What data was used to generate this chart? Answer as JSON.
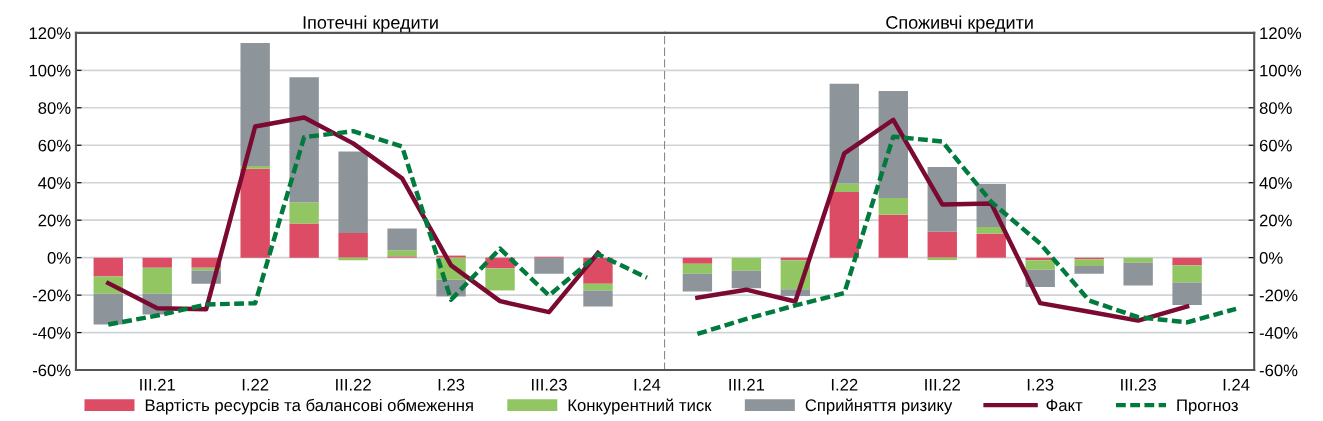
{
  "chart_data": [
    {
      "type": "bar",
      "title": "Іпотечні кредити",
      "stacked": true,
      "grid": "y",
      "legend": "bottom",
      "categories": [
        null,
        "III.21",
        null,
        "I.22",
        null,
        "III.22",
        null,
        "I.23",
        null,
        "III.23",
        null,
        "I.24"
      ],
      "ylim": [
        -60,
        120
      ],
      "yticks": [
        {
          "value": -60,
          "label": "-60%"
        },
        {
          "value": -40,
          "label": "-40%"
        },
        {
          "value": -20,
          "label": "-20%"
        },
        {
          "value": 0,
          "label": "0%"
        },
        {
          "value": 20,
          "label": "20%"
        },
        {
          "value": 40,
          "label": "40%"
        },
        {
          "value": 60,
          "label": "60%"
        },
        {
          "value": 80,
          "label": "80%"
        },
        {
          "value": 100,
          "label": "100%"
        },
        {
          "value": 120,
          "label": "120%"
        }
      ],
      "series": [
        {
          "name": "Вартість ресурсів та балансові обмеження",
          "color": "#dc4c64",
          "values": [
            -10,
            -5.4,
            -5.4,
            47.5,
            18.2,
            13.2,
            0.7,
            1.1,
            -5.7,
            0.5,
            -13.9,
            null
          ]
        },
        {
          "name": "Конкурентний тиск",
          "color": "#92c663",
          "values": [
            -9.3,
            -13.9,
            -1.4,
            1.4,
            11.3,
            -1.4,
            3.2,
            -11.8,
            -11.8,
            null,
            -3.6,
            null
          ]
        },
        {
          "name": "Сприйняття ризику",
          "color": "#8e959a",
          "values": [
            -16.4,
            -11,
            -7.1,
            65.7,
            66.8,
            43.4,
            11.6,
            -8.9,
            null,
            -8.6,
            -8.6,
            null
          ]
        },
        {
          "name": "Факт",
          "type": "line",
          "line_style": "solid",
          "color": "#7a0a32",
          "values": [
            -13.6,
            -27,
            -27.5,
            70,
            74.8,
            61,
            42.3,
            -4.1,
            -23.2,
            -29.1,
            2.5,
            null
          ]
        },
        {
          "name": "Прогноз",
          "type": "line",
          "line_style": "dashed",
          "color": "#007a3d",
          "values": [
            -35.7,
            -30.9,
            -25,
            -24.3,
            64.3,
            67.5,
            59.3,
            -22.5,
            4.8,
            -20.2,
            1.8,
            -10.7
          ]
        }
      ]
    },
    {
      "type": "bar",
      "title": "Споживчі кредити",
      "stacked": true,
      "grid": "y",
      "categories": [
        null,
        "III.21",
        null,
        "I.22",
        null,
        "III.22",
        null,
        "I.23",
        null,
        "III.23",
        null,
        "I.24"
      ],
      "ylim": [
        -60,
        120
      ],
      "yticks": [
        {
          "value": -60,
          "label": "-60%"
        },
        {
          "value": -40,
          "label": "-40%"
        },
        {
          "value": -20,
          "label": "-20%"
        },
        {
          "value": 0,
          "label": "0%"
        },
        {
          "value": 20,
          "label": "20%"
        },
        {
          "value": 40,
          "label": "40%"
        },
        {
          "value": 60,
          "label": "60%"
        },
        {
          "value": 80,
          "label": "80%"
        },
        {
          "value": 100,
          "label": "100%"
        },
        {
          "value": 120,
          "label": "120%"
        }
      ],
      "series": [
        {
          "color": "#dc4c64",
          "values": [
            -3.2,
            null,
            -1.4,
            35,
            22.9,
            13.8,
            12.7,
            -1.4,
            -0.9,
            null,
            -4.1,
            null
          ]
        },
        {
          "color": "#92c663",
          "values": [
            -5.4,
            -7,
            -15.5,
            4.6,
            8.9,
            -1.3,
            3.6,
            -5,
            -3.6,
            -2.7,
            -9.1,
            null
          ]
        },
        {
          "color": "#8e959a",
          "values": [
            -9.5,
            -9.3,
            -3.6,
            53.2,
            57.1,
            34.6,
            23,
            -9.3,
            -4.1,
            -12.1,
            -12.1,
            null
          ]
        },
        {
          "type": "line",
          "line_style": "solid",
          "color": "#7a0a32",
          "values": [
            -21.4,
            -17.1,
            -23.4,
            55.7,
            73.6,
            28.4,
            28.9,
            -24.3,
            -28.9,
            -33.6,
            -26.1,
            null
          ]
        },
        {
          "type": "line",
          "line_style": "dashed",
          "color": "#007a3d",
          "values": [
            -40.7,
            -32.7,
            -25.5,
            -18.9,
            64.6,
            62,
            29.8,
            7.5,
            -22.9,
            -31.8,
            -34.5,
            -27.3
          ]
        }
      ]
    }
  ]
}
